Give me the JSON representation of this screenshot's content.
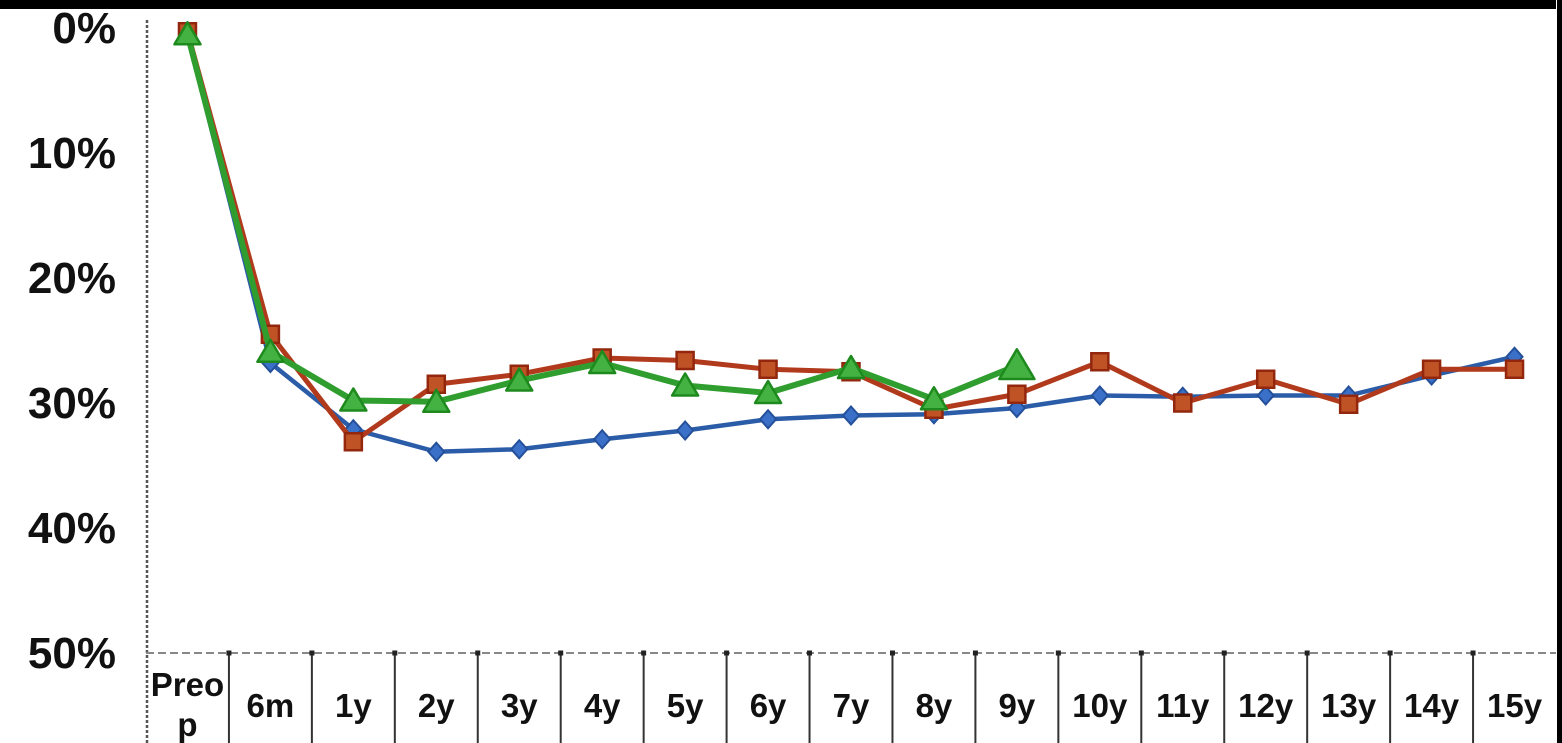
{
  "chart_data": {
    "type": "line",
    "title": "",
    "xlabel": "",
    "ylabel": "",
    "x_categories": [
      "Preop",
      "6m",
      "1y",
      "2y",
      "3y",
      "4y",
      "5y",
      "6y",
      "7y",
      "8y",
      "9y",
      "10y",
      "11y",
      "12y",
      "13y",
      "14y",
      "15y"
    ],
    "y_tick_labels": [
      "0%",
      "10%",
      "20%",
      "30%",
      "40%",
      "50%"
    ],
    "y_ticks": [
      0,
      10,
      20,
      30,
      40,
      50
    ],
    "ylim": [
      0,
      50
    ],
    "y_axis_inverted": true,
    "y_unit": "percent",
    "grid": false,
    "legend_position": "none",
    "series": [
      {
        "name": "blue-diamond",
        "marker": "diamond",
        "line_color": "#2b5ca8",
        "marker_color": "#3a70c8",
        "marker_edge_color": "#24509a",
        "values": [
          0.5,
          26.8,
          32.1,
          33.9,
          33.7,
          32.9,
          32.2,
          31.3,
          31.0,
          30.9,
          30.4,
          29.4,
          29.5,
          29.4,
          29.4,
          27.8,
          26.3
        ]
      },
      {
        "name": "red-square",
        "marker": "square",
        "line_color": "#b13a1c",
        "marker_color": "#c05326",
        "marker_edge_color": "#93270e",
        "values": [
          0.3,
          24.5,
          33.1,
          28.5,
          27.7,
          26.4,
          26.6,
          27.3,
          27.5,
          30.5,
          29.3,
          26.7,
          30.0,
          28.1,
          30.1,
          27.3,
          27.3
        ]
      },
      {
        "name": "green-triangle",
        "marker": "triangle",
        "line_color": "#2f9e2f",
        "marker_color": "#43b243",
        "marker_edge_color": "#1e8a1e",
        "values": [
          0.5,
          25.9,
          29.8,
          29.9,
          28.2,
          26.8,
          28.6,
          29.2,
          27.2,
          29.7,
          27.0
        ]
      }
    ],
    "frame": {
      "top_bar_color": "#000000",
      "right_bar_color": "#000000",
      "axis_color": "#555555"
    }
  }
}
